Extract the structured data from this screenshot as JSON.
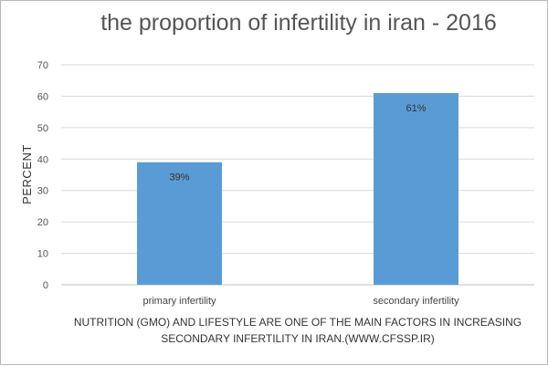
{
  "chart_data": {
    "type": "bar",
    "title": "the proportion of infertility in iran - 2016",
    "ylabel": "PERCENT",
    "xlabel": "",
    "categories": [
      "primary infertility",
      "secondary infertility"
    ],
    "values": [
      39,
      61
    ],
    "data_labels": [
      "39%",
      "61%"
    ],
    "ylim": [
      0,
      70
    ],
    "yticks": [
      0,
      10,
      20,
      30,
      40,
      50,
      60,
      70
    ],
    "grid": true,
    "bar_color": "#5b9bd5",
    "caption_lines": [
      "NUTRITION (GMO) AND LIFESTYLE ARE ONE OF THE MAIN FACTORS IN INCREASING",
      "SECONDARY INFERTILITY IN IRAN.(WWW.CFSSP.IR)"
    ]
  }
}
